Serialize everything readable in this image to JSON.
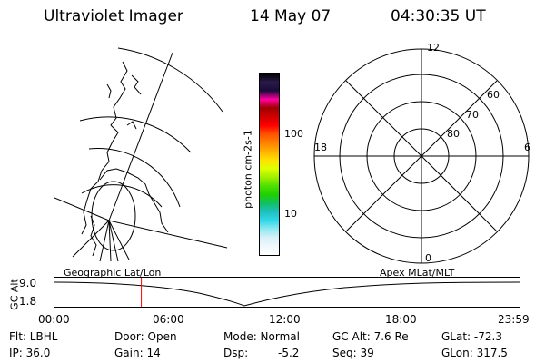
{
  "header": {
    "instrument": "Ultraviolet Imager",
    "date": "14 May 07",
    "time": "04:30:35 UT"
  },
  "colorbar": {
    "label": "photon cm-2s-1",
    "ticks": [
      "100",
      "10"
    ],
    "colors": [
      "#000000",
      "#2a1a4a",
      "#1a0a3a",
      "#ff00a0",
      "#a00000",
      "#d00000",
      "#ff0000",
      "#ff5000",
      "#ff8000",
      "#ffb000",
      "#ffe000",
      "#e0ff00",
      "#a0f000",
      "#50e000",
      "#20d000",
      "#10c060",
      "#20c0c0",
      "#30d8e8",
      "#90e8f0",
      "#d8f0f8",
      "#f0f8fc",
      "#ffffff"
    ]
  },
  "left_panel": {
    "label": "Geographic Lat/Lon"
  },
  "right_panel": {
    "label": "Apex MLat/MLT",
    "mlt_labels": {
      "top": "12",
      "bottom": "0",
      "left": "18",
      "right": "6"
    },
    "lat_labels": [
      "60",
      "70",
      "80"
    ]
  },
  "timeline": {
    "ylabel": "GC Alt",
    "y_ticks": [
      "9.0",
      "1.8"
    ],
    "x_ticks": [
      "00:00",
      "06:00",
      "12:00",
      "18:00",
      "23:59"
    ],
    "marker_color": "#ff0000",
    "marker_time_hours": 4.51
  },
  "status": {
    "flt": "Flt: LBHL",
    "ip": "IP: 36.0",
    "door": "Door: Open",
    "gain": "Gain: 14",
    "mode": "Mode: Normal",
    "dsp": "Dsp:",
    "dsp_value": "-5.2",
    "gc_alt": "GC Alt: 7.6 Re",
    "seq": "Seq: 39",
    "glat": "GLat: -72.3",
    "glon": "GLon: 317.5"
  }
}
